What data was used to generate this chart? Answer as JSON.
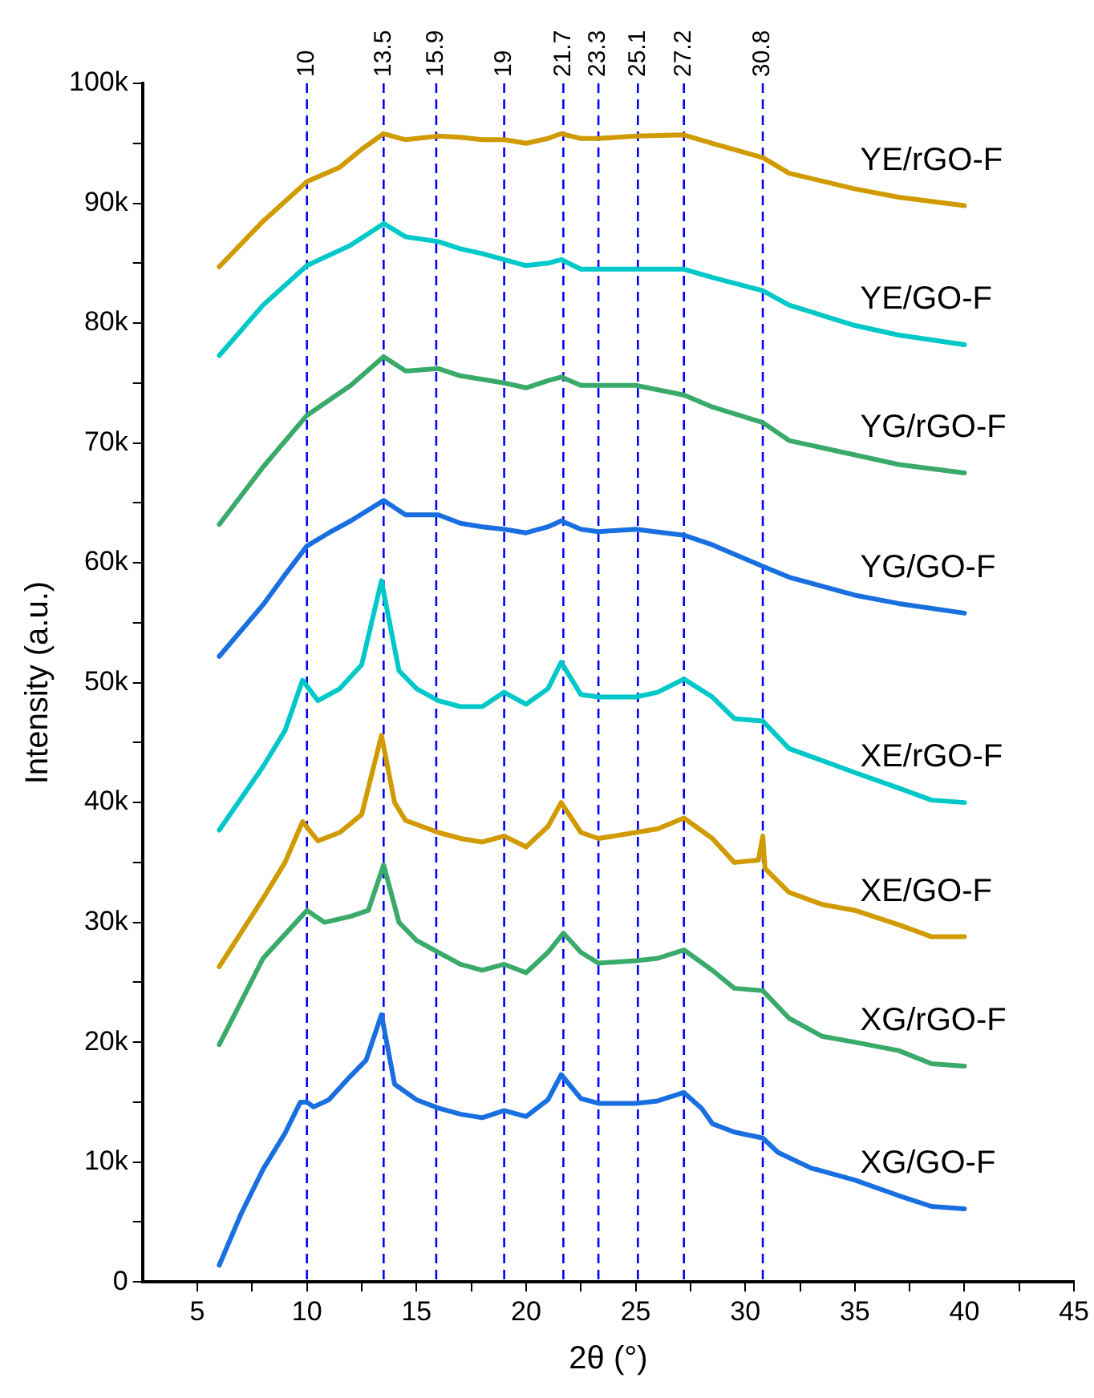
{
  "chart_data": {
    "type": "line",
    "xlabel": "2θ (°)",
    "ylabel": "Intensity (a.u.)",
    "xlim": [
      2.5,
      45
    ],
    "xticks": [
      5,
      {
        "value": 7.5,
        "label": null
      },
      10,
      {
        "value": 12.5,
        "label": null
      },
      15,
      {
        "value": 17.5,
        "label": null
      },
      20,
      {
        "value": 22.5,
        "label": null
      },
      25,
      {
        "value": 27.5,
        "label": null
      },
      30,
      {
        "value": 32.5,
        "label": null
      },
      35,
      {
        "value": 37.5,
        "label": null
      },
      40,
      {
        "value": 42.5,
        "label": null
      },
      45
    ],
    "ylim": [
      0,
      100000
    ],
    "yticks": [
      0,
      {
        "value": 5000,
        "label": null
      },
      {
        "value": 10000,
        "label": "10k"
      },
      {
        "value": 15000,
        "label": null
      },
      {
        "value": 20000,
        "label": "20k"
      },
      {
        "value": 25000,
        "label": null
      },
      {
        "value": 30000,
        "label": "30k"
      },
      {
        "value": 35000,
        "label": null
      },
      {
        "value": 40000,
        "label": "40k"
      },
      {
        "value": 45000,
        "label": null
      },
      {
        "value": 50000,
        "label": "50k"
      },
      {
        "value": 55000,
        "label": null
      },
      {
        "value": 60000,
        "label": "60k"
      },
      {
        "value": 65000,
        "label": null
      },
      {
        "value": 70000,
        "label": "70k"
      },
      {
        "value": 75000,
        "label": null
      },
      {
        "value": 80000,
        "label": "80k"
      },
      {
        "value": 85000,
        "label": null
      },
      {
        "value": 90000,
        "label": "90k"
      },
      {
        "value": 95000,
        "label": null
      },
      {
        "value": 100000,
        "label": "100k"
      }
    ],
    "grid": false,
    "legend": false,
    "marker": "none",
    "line_style": "solid",
    "series": [
      {
        "name": "XG/GO-F",
        "color": "#1a6fe0",
        "x": [
          6,
          7,
          8,
          9,
          9.7,
          10,
          10.3,
          11,
          12,
          12.7,
          13.4,
          14,
          15,
          16,
          17,
          18,
          19,
          20,
          21,
          21.6,
          22.5,
          23.3,
          25,
          26,
          27.2,
          28,
          28.5,
          29.5,
          30.8,
          31.5,
          33,
          35,
          37,
          38.5,
          40
        ],
        "values": [
          1400,
          5700,
          9400,
          12400,
          15000,
          15000,
          14600,
          15200,
          17200,
          18500,
          22300,
          16500,
          15200,
          14500,
          14000,
          13700,
          14300,
          13800,
          15200,
          17300,
          15300,
          14900,
          14900,
          15100,
          15800,
          14500,
          13200,
          12500,
          12000,
          10800,
          9500,
          8500,
          7200,
          6300,
          6100
        ]
      },
      {
        "name": "XG/rGO-F",
        "color": "#3aaa6a",
        "x": [
          6,
          8,
          9.5,
          10,
          10.8,
          12,
          12.8,
          13.5,
          14.2,
          15,
          16,
          17,
          18,
          19,
          20,
          21,
          21.7,
          22.5,
          23.3,
          25,
          26,
          27.2,
          28.5,
          29.5,
          30.8,
          32,
          33.5,
          35,
          37,
          38.5,
          40
        ],
        "values": [
          19800,
          27000,
          30000,
          31000,
          30000,
          30500,
          31000,
          34800,
          30000,
          28500,
          27500,
          26500,
          26000,
          26500,
          25800,
          27500,
          29100,
          27500,
          26600,
          26800,
          27000,
          27700,
          26000,
          24500,
          24300,
          22000,
          20500,
          20000,
          19300,
          18200,
          18000
        ]
      },
      {
        "name": "XE/GO-F",
        "color": "#d09a00",
        "x": [
          6,
          8,
          9,
          9.8,
          10.5,
          11.5,
          12.5,
          13.4,
          14,
          14.5,
          16,
          17,
          18,
          19,
          20,
          21,
          21.6,
          22.5,
          23.3,
          25,
          26,
          27.2,
          28.5,
          29.5,
          30.6,
          30.8,
          30.9,
          32,
          33.5,
          35,
          37,
          38.5,
          40
        ],
        "values": [
          26300,
          32000,
          35000,
          38400,
          36800,
          37500,
          39000,
          45600,
          40000,
          38500,
          37500,
          37000,
          36700,
          37200,
          36300,
          38000,
          40000,
          37500,
          37000,
          37500,
          37800,
          38700,
          37000,
          35000,
          35200,
          37200,
          34500,
          32500,
          31500,
          31000,
          29800,
          28800,
          28800
        ]
      },
      {
        "name": "XE/rGO-F",
        "color": "#00c8c8",
        "x": [
          6,
          8,
          9,
          9.8,
          10.5,
          11.5,
          12.5,
          13.4,
          14.2,
          15,
          16,
          17,
          18,
          19,
          20,
          21,
          21.6,
          22.5,
          23.3,
          25,
          26,
          27.2,
          28.5,
          29.5,
          30.8,
          32,
          33.5,
          35,
          37,
          38.5,
          40
        ],
        "values": [
          37700,
          43000,
          46000,
          50200,
          48500,
          49500,
          51500,
          58500,
          51000,
          49500,
          48500,
          48000,
          48000,
          49200,
          48200,
          49500,
          51700,
          49000,
          48800,
          48800,
          49200,
          50300,
          48800,
          47000,
          46800,
          44500,
          43500,
          42500,
          41200,
          40200,
          40000
        ]
      },
      {
        "name": "YG/GO-F",
        "color": "#1a6fe0",
        "x": [
          6,
          8,
          9,
          10,
          11,
          12,
          13.5,
          14.5,
          16,
          17,
          18,
          19,
          20,
          21,
          21.6,
          22.5,
          23.3,
          25,
          27.2,
          28.5,
          30.8,
          32,
          35,
          37,
          40
        ],
        "values": [
          52200,
          56500,
          59000,
          61400,
          62500,
          63500,
          65200,
          64000,
          64000,
          63300,
          63000,
          62800,
          62500,
          63000,
          63500,
          62800,
          62600,
          62800,
          62300,
          61500,
          59700,
          58800,
          57300,
          56600,
          55800
        ]
      },
      {
        "name": "YG/rGO-F",
        "color": "#3aaa6a",
        "x": [
          6,
          8,
          10,
          12,
          13.5,
          14.5,
          16,
          17,
          18,
          19,
          20,
          21,
          21.6,
          22.5,
          23.3,
          25,
          27.2,
          28.5,
          30.8,
          32,
          35,
          37,
          40
        ],
        "values": [
          63200,
          68000,
          72300,
          74800,
          77200,
          76000,
          76200,
          75600,
          75300,
          75000,
          74600,
          75200,
          75500,
          74800,
          74800,
          74800,
          74000,
          73000,
          71700,
          70200,
          69000,
          68200,
          67500
        ]
      },
      {
        "name": "YE/GO-F",
        "color": "#00c8c8",
        "x": [
          6,
          8,
          10,
          12,
          13.5,
          14.5,
          16,
          17,
          18,
          19,
          20,
          21,
          21.6,
          22.5,
          23.3,
          25,
          27.2,
          28.5,
          30.8,
          32,
          35,
          37,
          40
        ],
        "values": [
          77300,
          81500,
          84800,
          86500,
          88300,
          87200,
          86800,
          86200,
          85800,
          85300,
          84800,
          85000,
          85300,
          84500,
          84500,
          84500,
          84500,
          83800,
          82700,
          81500,
          79800,
          79000,
          78200
        ]
      },
      {
        "name": "YE/rGO-F",
        "color": "#d09a00",
        "x": [
          6,
          8,
          10,
          11.5,
          12.5,
          13.5,
          14.5,
          16,
          17,
          18,
          19,
          20,
          21,
          21.6,
          22.5,
          23.3,
          25,
          27.2,
          28.5,
          30.8,
          32,
          35,
          37,
          40
        ],
        "values": [
          84700,
          88500,
          91800,
          93000,
          94500,
          95800,
          95300,
          95600,
          95500,
          95300,
          95300,
          95000,
          95400,
          95800,
          95400,
          95400,
          95600,
          95700,
          95000,
          93800,
          92500,
          91200,
          90500,
          89800
        ]
      }
    ],
    "ref_lines": [
      {
        "axis": "x",
        "value": 10,
        "label": "10",
        "color": "#0000ff",
        "line_style": "dashed"
      },
      {
        "axis": "x",
        "value": 13.5,
        "label": "13.5",
        "color": "#0000ff",
        "line_style": "dashed"
      },
      {
        "axis": "x",
        "value": 15.9,
        "label": "15.9",
        "color": "#0000ff",
        "line_style": "dashed"
      },
      {
        "axis": "x",
        "value": 19,
        "label": "19",
        "color": "#0000ff",
        "line_style": "dashed"
      },
      {
        "axis": "x",
        "value": 21.7,
        "label": "21.7",
        "color": "#0000ff",
        "line_style": "dashed"
      },
      {
        "axis": "x",
        "value": 23.3,
        "label": "23.3",
        "color": "#0000ff",
        "line_style": "dashed"
      },
      {
        "axis": "x",
        "value": 25.1,
        "label": "25.1",
        "color": "#0000ff",
        "line_style": "dashed"
      },
      {
        "axis": "x",
        "value": 27.2,
        "label": "27.2",
        "color": "#0000ff",
        "line_style": "dashed"
      },
      {
        "axis": "x",
        "value": 30.8,
        "label": "30.8",
        "color": "#0000ff",
        "line_style": "dashed"
      }
    ]
  }
}
